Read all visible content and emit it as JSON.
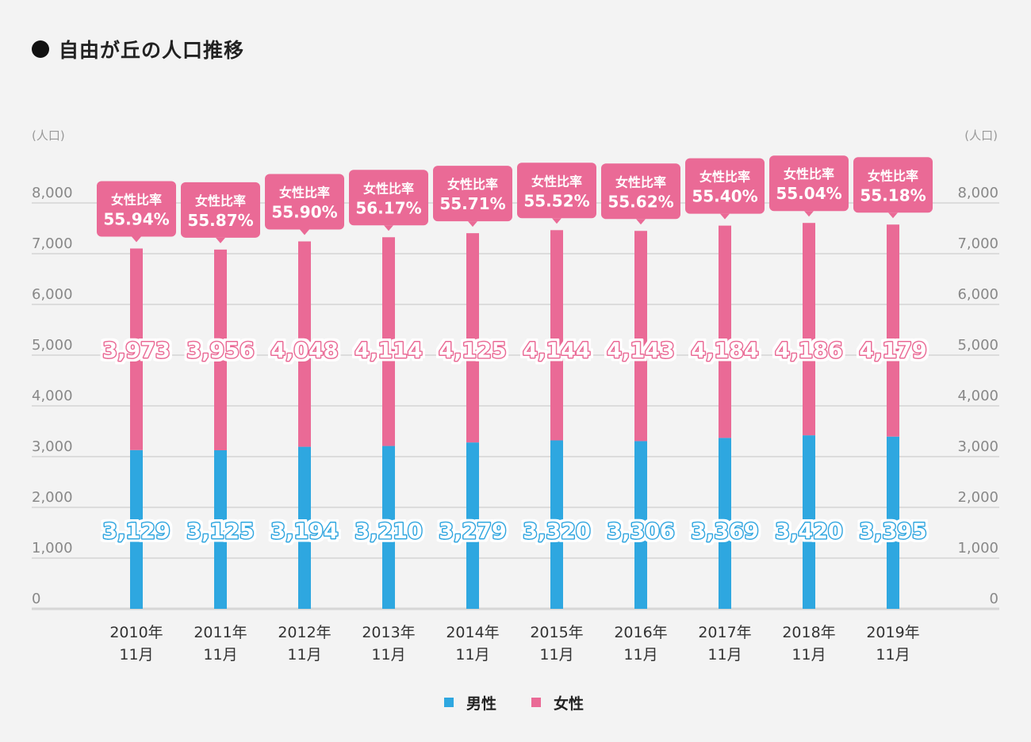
{
  "chart_data": {
    "type": "bar",
    "stacked": true,
    "title": "自由が丘の人口推移",
    "ylabel": "(人口)",
    "ylabel_right": "(人口)",
    "ylim": [
      0,
      8000
    ],
    "yticks": [
      "0",
      "1,000",
      "2,000",
      "3,000",
      "4,000",
      "5,000",
      "6,000",
      "7,000",
      "8,000"
    ],
    "grid": true,
    "categories": [
      [
        "2010年",
        "11月"
      ],
      [
        "2011年",
        "11月"
      ],
      [
        "2012年",
        "11月"
      ],
      [
        "2013年",
        "11月"
      ],
      [
        "2014年",
        "11月"
      ],
      [
        "2015年",
        "11月"
      ],
      [
        "2016年",
        "11月"
      ],
      [
        "2017年",
        "11月"
      ],
      [
        "2018年",
        "11月"
      ],
      [
        "2019年",
        "11月"
      ]
    ],
    "series": [
      {
        "name": "男性",
        "color": "#2ea7e0",
        "values": [
          3129,
          3125,
          3194,
          3210,
          3279,
          3320,
          3306,
          3369,
          3420,
          3395
        ],
        "labels": [
          "3,129",
          "3,125",
          "3,194",
          "3,210",
          "3,279",
          "3,320",
          "3,306",
          "3,369",
          "3,420",
          "3,395"
        ]
      },
      {
        "name": "女性",
        "color": "#ea6a96",
        "values": [
          3973,
          3956,
          4048,
          4114,
          4125,
          4144,
          4143,
          4184,
          4186,
          4179
        ],
        "labels": [
          "3,973",
          "3,956",
          "4,048",
          "4,114",
          "4,125",
          "4,144",
          "4,143",
          "4,184",
          "4,186",
          "4,179"
        ]
      }
    ],
    "annotation_title": "女性比率",
    "annotations": [
      "55.94%",
      "55.87%",
      "55.90%",
      "56.17%",
      "55.71%",
      "55.52%",
      "55.62%",
      "55.40%",
      "55.04%",
      "55.18%"
    ],
    "legend_position": "bottom"
  }
}
